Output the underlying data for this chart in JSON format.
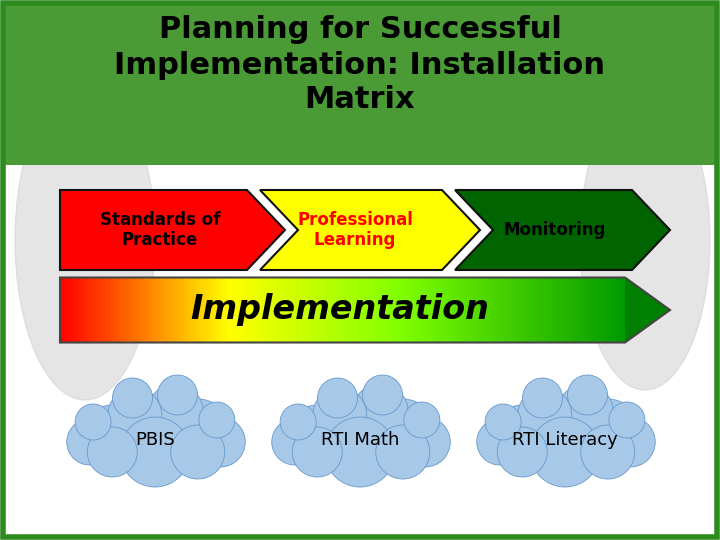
{
  "title_line1": "Planning for Successful",
  "title_line2": "Implementation: Installation",
  "title_line3": "Matrix",
  "title_bg_color": "#4a9a35",
  "title_text_color": "#000000",
  "arrow_labels": [
    "Standards of\nPractice",
    "Professional\nLearning",
    "Monitoring"
  ],
  "arrow_colors": [
    "#ff0000",
    "#ffff00",
    "#006400"
  ],
  "arrow_text_colors": [
    "#000000",
    "#ff0000",
    "#000000"
  ],
  "impl_text": "Implementation",
  "cloud_labels": [
    "PBIS",
    "RTI Math",
    "RTI Literacy"
  ],
  "cloud_color_light": "#a8c8e8",
  "cloud_color_dark": "#6699cc",
  "cloud_text_color": "#000000",
  "bg_color": "#ffffff",
  "border_color": "#2d8a1e",
  "sil_color": "#cccccc",
  "notch": 0.4
}
